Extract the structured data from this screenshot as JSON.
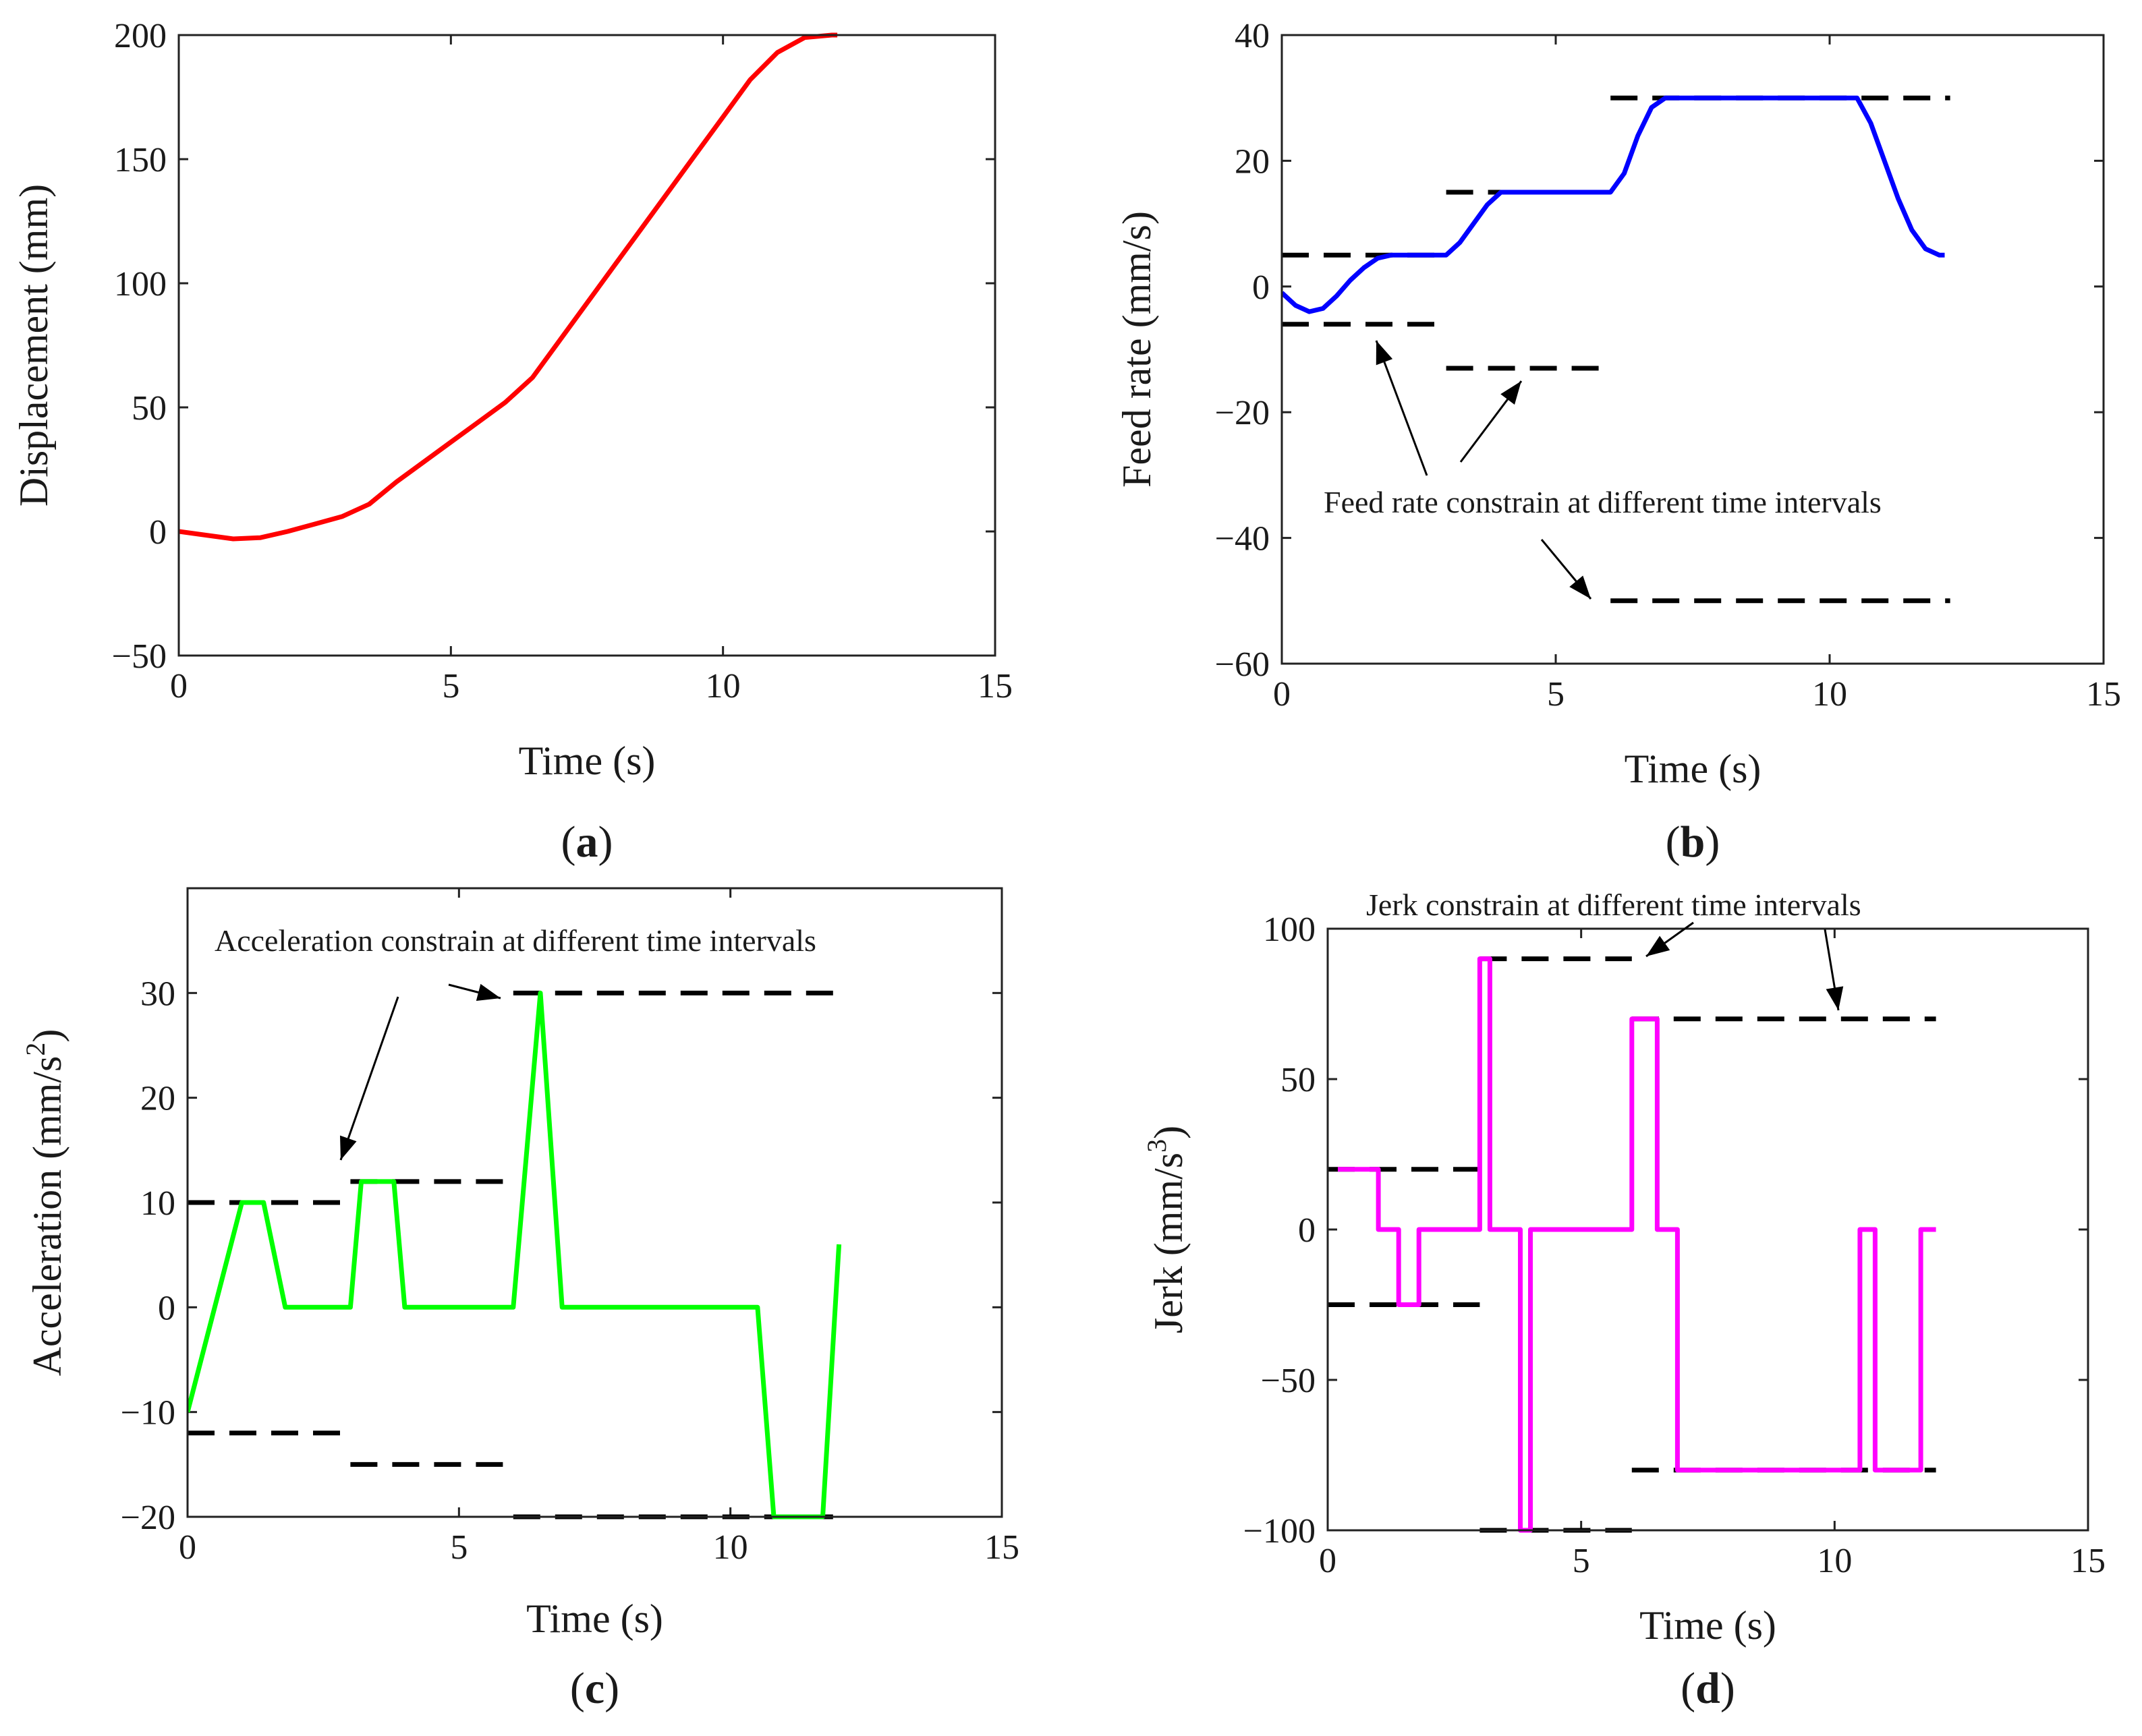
{
  "chart_data": [
    {
      "id": "a",
      "type": "line",
      "panel_label": "a",
      "xlabel": "Time (s)",
      "ylabel": "Displacement (mm)",
      "xlim": [
        0,
        15
      ],
      "ylim": [
        -50,
        200
      ],
      "xticks": [
        0,
        5,
        10,
        15
      ],
      "yticks": [
        -50,
        0,
        50,
        100,
        150,
        200
      ],
      "tick_labels_y": [
        "−50",
        "0",
        "50",
        "100",
        "150",
        "200"
      ],
      "tick_labels_x": [
        "0",
        "5",
        "10",
        "15"
      ],
      "grid": false,
      "series": [
        {
          "color": "#ff0000",
          "x": [
            0,
            0.5,
            1.0,
            1.5,
            2.0,
            2.5,
            3.0,
            3.5,
            4.0,
            4.5,
            5.0,
            5.5,
            6.0,
            6.5,
            7.0,
            7.5,
            8.0,
            8.5,
            9.0,
            9.5,
            10.0,
            10.5,
            11.0,
            11.5,
            12.0,
            12.1
          ],
          "y": [
            0,
            -1.5,
            -3,
            -2.5,
            0,
            3,
            6,
            11,
            20,
            28,
            36,
            44,
            52,
            62,
            77,
            92,
            107,
            122,
            137,
            152,
            167,
            182,
            193,
            199,
            200,
            200
          ]
        }
      ],
      "constraints": [],
      "annotations": []
    },
    {
      "id": "b",
      "type": "line",
      "panel_label": "b",
      "xlabel": "Time (s)",
      "ylabel": "Feed rate (mm/s)",
      "xlim": [
        0,
        15
      ],
      "ylim": [
        -60,
        40
      ],
      "xticks": [
        0,
        5,
        10,
        15
      ],
      "yticks": [
        -60,
        -40,
        -20,
        0,
        20,
        40
      ],
      "tick_labels_y": [
        "−60",
        "−40",
        "−20",
        "0",
        "20",
        "40"
      ],
      "tick_labels_x": [
        "0",
        "5",
        "10",
        "15"
      ],
      "grid": false,
      "series": [
        {
          "color": "#0000ff",
          "x": [
            0,
            0.25,
            0.5,
            0.75,
            1.0,
            1.25,
            1.5,
            1.75,
            2.0,
            3.0,
            3.25,
            3.5,
            3.75,
            4.0,
            6.0,
            6.25,
            6.5,
            6.75,
            7.0,
            10.5,
            10.75,
            11.0,
            11.25,
            11.5,
            11.75,
            12.0,
            12.1
          ],
          "y": [
            -1,
            -3,
            -4,
            -3.5,
            -1.5,
            1,
            3,
            4.5,
            5,
            5,
            7,
            10,
            13,
            15,
            15,
            18,
            24,
            28.5,
            30,
            30,
            26,
            20,
            14,
            9,
            6,
            5,
            5
          ]
        }
      ],
      "constraints": [
        {
          "x0": 0,
          "x1": 3,
          "y": 5
        },
        {
          "x0": 0,
          "x1": 3,
          "y": -6
        },
        {
          "x0": 3,
          "x1": 6,
          "y": 15
        },
        {
          "x0": 3,
          "x1": 6,
          "y": -13
        },
        {
          "x0": 6,
          "x1": 12.2,
          "y": 30
        },
        {
          "x0": 6,
          "x1": 12.2,
          "y": -50
        }
      ],
      "annotations": [
        {
          "text": "Feed rate constrain at different time intervals"
        }
      ]
    },
    {
      "id": "c",
      "type": "line",
      "panel_label": "c",
      "xlabel": "Time (s)",
      "ylabel": "Acceleration (mm/s",
      "ylabel_superscript": "2",
      "ylabel_suffix": ")",
      "xlim": [
        0,
        15
      ],
      "ylim": [
        -20,
        40
      ],
      "xticks": [
        0,
        5,
        10,
        15
      ],
      "yticks": [
        -20,
        -10,
        0,
        10,
        20,
        30
      ],
      "tick_labels_y": [
        "−20",
        "−10",
        "0",
        "10",
        "20",
        "30"
      ],
      "tick_labels_x": [
        "0",
        "5",
        "10",
        "15"
      ],
      "grid": false,
      "series": [
        {
          "color": "#00ff00",
          "x": [
            0,
            1.0,
            1.4,
            1.8,
            3.0,
            3.2,
            3.8,
            4.0,
            6.0,
            6.5,
            6.9,
            10.5,
            10.8,
            11.7,
            12.0
          ],
          "y": [
            -10,
            10,
            10,
            0,
            0,
            12,
            12,
            0,
            0,
            30,
            0,
            0,
            -20,
            -20,
            6
          ]
        }
      ],
      "constraints": [
        {
          "x0": 0,
          "x1": 3,
          "y": 10
        },
        {
          "x0": 0,
          "x1": 3,
          "y": -12
        },
        {
          "x0": 3,
          "x1": 6,
          "y": 12
        },
        {
          "x0": 3,
          "x1": 6,
          "y": -15
        },
        {
          "x0": 6,
          "x1": 12,
          "y": 30
        },
        {
          "x0": 6,
          "x1": 12,
          "y": -20
        }
      ],
      "annotations": [
        {
          "text": "Acceleration  constrain at different time intervals"
        }
      ]
    },
    {
      "id": "d",
      "type": "line",
      "panel_label": "d",
      "xlabel": "Time (s)",
      "ylabel": "Jerk (mm/s",
      "ylabel_superscript": "3",
      "ylabel_suffix": ")",
      "xlim": [
        0,
        15
      ],
      "ylim": [
        -100,
        100
      ],
      "xticks": [
        0,
        5,
        10,
        15
      ],
      "yticks": [
        -100,
        -50,
        0,
        50,
        100
      ],
      "tick_labels_y": [
        "−100",
        "−50",
        "0",
        "50",
        "100"
      ],
      "tick_labels_x": [
        "0",
        "5",
        "10",
        "15"
      ],
      "grid": false,
      "series": [
        {
          "color": "#ff00ff",
          "x": [
            0.2,
            1.0,
            1.0,
            1.4,
            1.4,
            1.8,
            1.8,
            3.0,
            3.0,
            3.2,
            3.2,
            3.8,
            3.8,
            4.0,
            4.0,
            6.0,
            6.0,
            6.5,
            6.5,
            6.9,
            6.9,
            10.5,
            10.5,
            10.8,
            10.8,
            11.7,
            11.7,
            12.0
          ],
          "y": [
            20,
            20,
            0,
            0,
            -25,
            -25,
            0,
            0,
            90,
            90,
            0,
            0,
            -100,
            -100,
            0,
            0,
            70,
            70,
            0,
            0,
            -80,
            -80,
            0,
            0,
            -80,
            -80,
            0,
            0
          ]
        }
      ],
      "constraints": [
        {
          "x0": 0,
          "x1": 3,
          "y": 20
        },
        {
          "x0": 0,
          "x1": 3,
          "y": -25
        },
        {
          "x0": 3,
          "x1": 6,
          "y": 90
        },
        {
          "x0": 3,
          "x1": 6,
          "y": -100
        },
        {
          "x0": 6,
          "x1": 12,
          "y": 70
        },
        {
          "x0": 6,
          "x1": 12,
          "y": -80
        }
      ],
      "annotations": [
        {
          "text": "Jerk constrain at different time intervals"
        }
      ]
    }
  ]
}
